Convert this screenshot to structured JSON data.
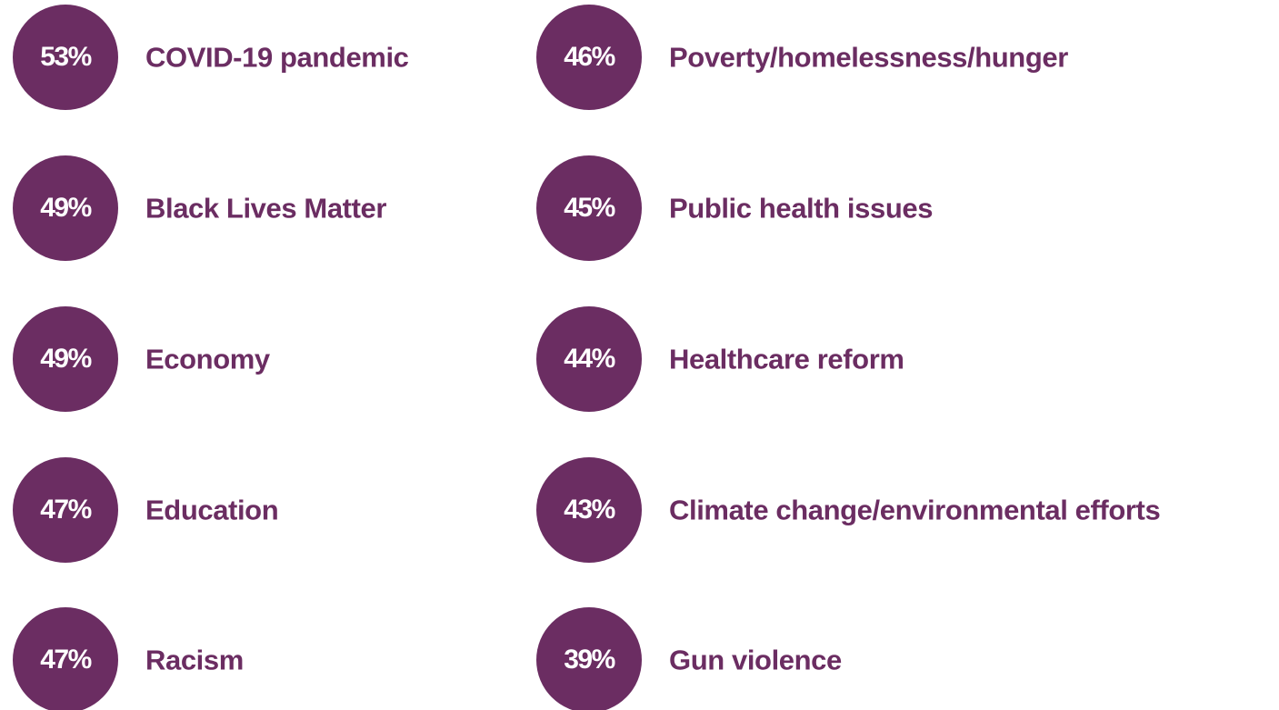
{
  "columns": [
    {
      "items": [
        {
          "percent": "53%",
          "label": "COVID-19 pandemic"
        },
        {
          "percent": "49%",
          "label": "Black Lives Matter"
        },
        {
          "percent": "49%",
          "label": "Economy"
        },
        {
          "percent": "47%",
          "label": "Education"
        },
        {
          "percent": "47%",
          "label": "Racism"
        }
      ]
    },
    {
      "items": [
        {
          "percent": "46%",
          "label": "Poverty/homelessness/hunger"
        },
        {
          "percent": "45%",
          "label": "Public health issues"
        },
        {
          "percent": "44%",
          "label": "Healthcare reform"
        },
        {
          "percent": "43%",
          "label": "Climate change/environmental efforts"
        },
        {
          "percent": "39%",
          "label": "Gun violence"
        }
      ]
    }
  ]
}
